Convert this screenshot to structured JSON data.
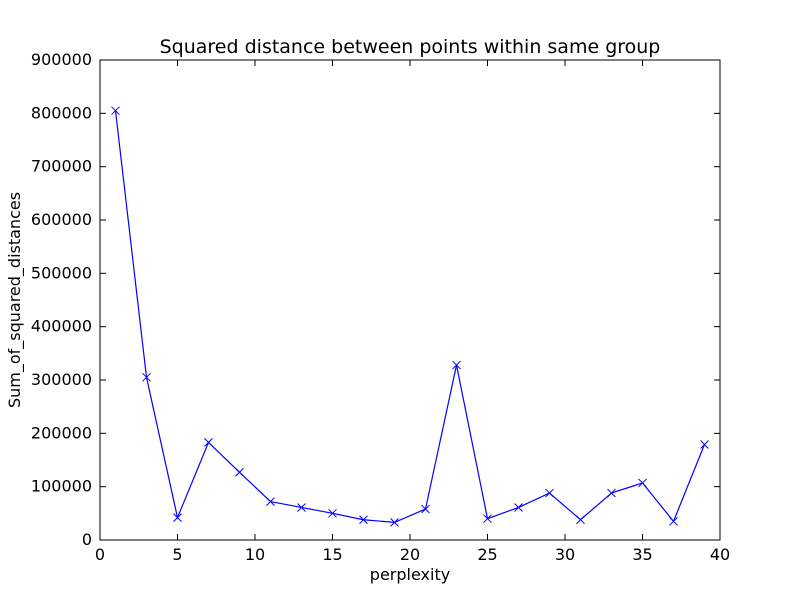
{
  "chart_data": {
    "type": "line",
    "title": "Squared distance between points within same group",
    "xlabel": "perplexity",
    "ylabel": "Sum_of_squared_distances",
    "xlim": [
      0,
      40
    ],
    "ylim": [
      0,
      900000
    ],
    "xticks": [
      0,
      5,
      10,
      15,
      20,
      25,
      30,
      35,
      40
    ],
    "yticks": [
      0,
      100000,
      200000,
      300000,
      400000,
      500000,
      600000,
      700000,
      800000,
      900000
    ],
    "xtick_labels": [
      "0",
      "5",
      "10",
      "15",
      "20",
      "25",
      "30",
      "35",
      "40"
    ],
    "ytick_labels": [
      "0",
      "100000",
      "200000",
      "300000",
      "400000",
      "500000",
      "600000",
      "700000",
      "800000",
      "900000"
    ],
    "grid": false,
    "marker": "x",
    "series": [
      {
        "color": "#0000ff",
        "x": [
          1,
          3,
          5,
          7,
          9,
          11,
          13,
          15,
          17,
          19,
          21,
          23,
          25,
          27,
          29,
          31,
          33,
          35,
          37,
          39
        ],
        "y": [
          805000,
          305000,
          42000,
          183000,
          127000,
          72000,
          61000,
          50000,
          38000,
          33000,
          58000,
          328000,
          40000,
          61000,
          88000,
          38000,
          88000,
          107000,
          35000,
          179000
        ]
      }
    ]
  }
}
